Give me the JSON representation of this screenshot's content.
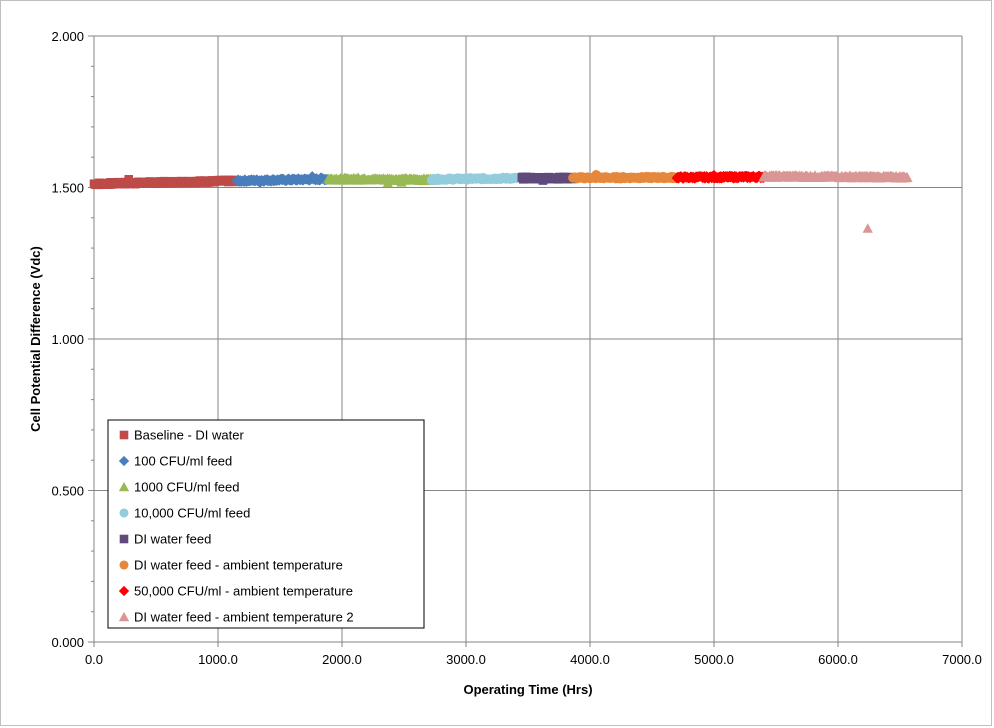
{
  "chart_data": {
    "type": "scatter",
    "xlabel": "Operating Time (Hrs)",
    "ylabel": "Cell Potential Difference (Vdc)",
    "xlim": [
      0,
      7000
    ],
    "ylim": [
      0,
      2
    ],
    "x_ticks": [
      "0.0",
      "1000.0",
      "2000.0",
      "3000.0",
      "4000.0",
      "5000.0",
      "6000.0",
      "7000.0"
    ],
    "y_ticks": [
      "0.000",
      "0.500",
      "1.000",
      "1.500",
      "2.000"
    ],
    "grid": true,
    "legend_position": "bottom-left",
    "series": [
      {
        "name": "Baseline - DI water",
        "color": "#be4b48",
        "marker": "square",
        "x_range": [
          0,
          1150
        ],
        "y_start": 1.512,
        "y_end": 1.522,
        "outliers": [
          [
            280,
            1.527
          ]
        ]
      },
      {
        "name": "100 CFU/ml feed",
        "color": "#4a7ebb",
        "marker": "diamond",
        "x_range": [
          1150,
          1890
        ],
        "y_start": 1.522,
        "y_end": 1.528,
        "outliers": [
          [
            1760,
            1.537
          ],
          [
            1830,
            1.533
          ],
          [
            1340,
            1.516
          ]
        ]
      },
      {
        "name": "1000 CFU/ml feed",
        "color": "#98b954",
        "marker": "triangle",
        "x_range": [
          1890,
          2720
        ],
        "y_start": 1.528,
        "y_end": 1.526,
        "outliers": [
          [
            2370,
            1.515
          ],
          [
            2480,
            1.517
          ],
          [
            2130,
            1.533
          ]
        ]
      },
      {
        "name": "10,000 CFU/ml feed",
        "color": "#93cddd",
        "marker": "circle",
        "x_range": [
          2720,
          3450
        ],
        "y_start": 1.527,
        "y_end": 1.531,
        "outliers": []
      },
      {
        "name": "DI water feed",
        "color": "#604a7b",
        "marker": "square",
        "x_range": [
          3450,
          3860
        ],
        "y_start": 1.531,
        "y_end": 1.531,
        "outliers": [
          [
            3620,
            1.523
          ]
        ]
      },
      {
        "name": "DI water feed - ambient temperature",
        "color": "#e6883c",
        "marker": "circle",
        "x_range": [
          3860,
          4700
        ],
        "y_start": 1.532,
        "y_end": 1.533,
        "outliers": [
          [
            4050,
            1.543
          ]
        ]
      },
      {
        "name": "50,000 CFU/ml - ambient temperature",
        "color": "#ff0000",
        "marker": "diamond",
        "x_range": [
          4700,
          5400
        ],
        "y_start": 1.533,
        "y_end": 1.535,
        "outliers": [
          [
            5000,
            1.541
          ]
        ]
      },
      {
        "name": "DI water feed - ambient temperature 2",
        "color": "#d99694",
        "marker": "triangle",
        "x_range": [
          5400,
          6560
        ],
        "y_start": 1.537,
        "y_end": 1.534,
        "outliers": [
          [
            6240,
            1.365
          ]
        ]
      }
    ]
  }
}
